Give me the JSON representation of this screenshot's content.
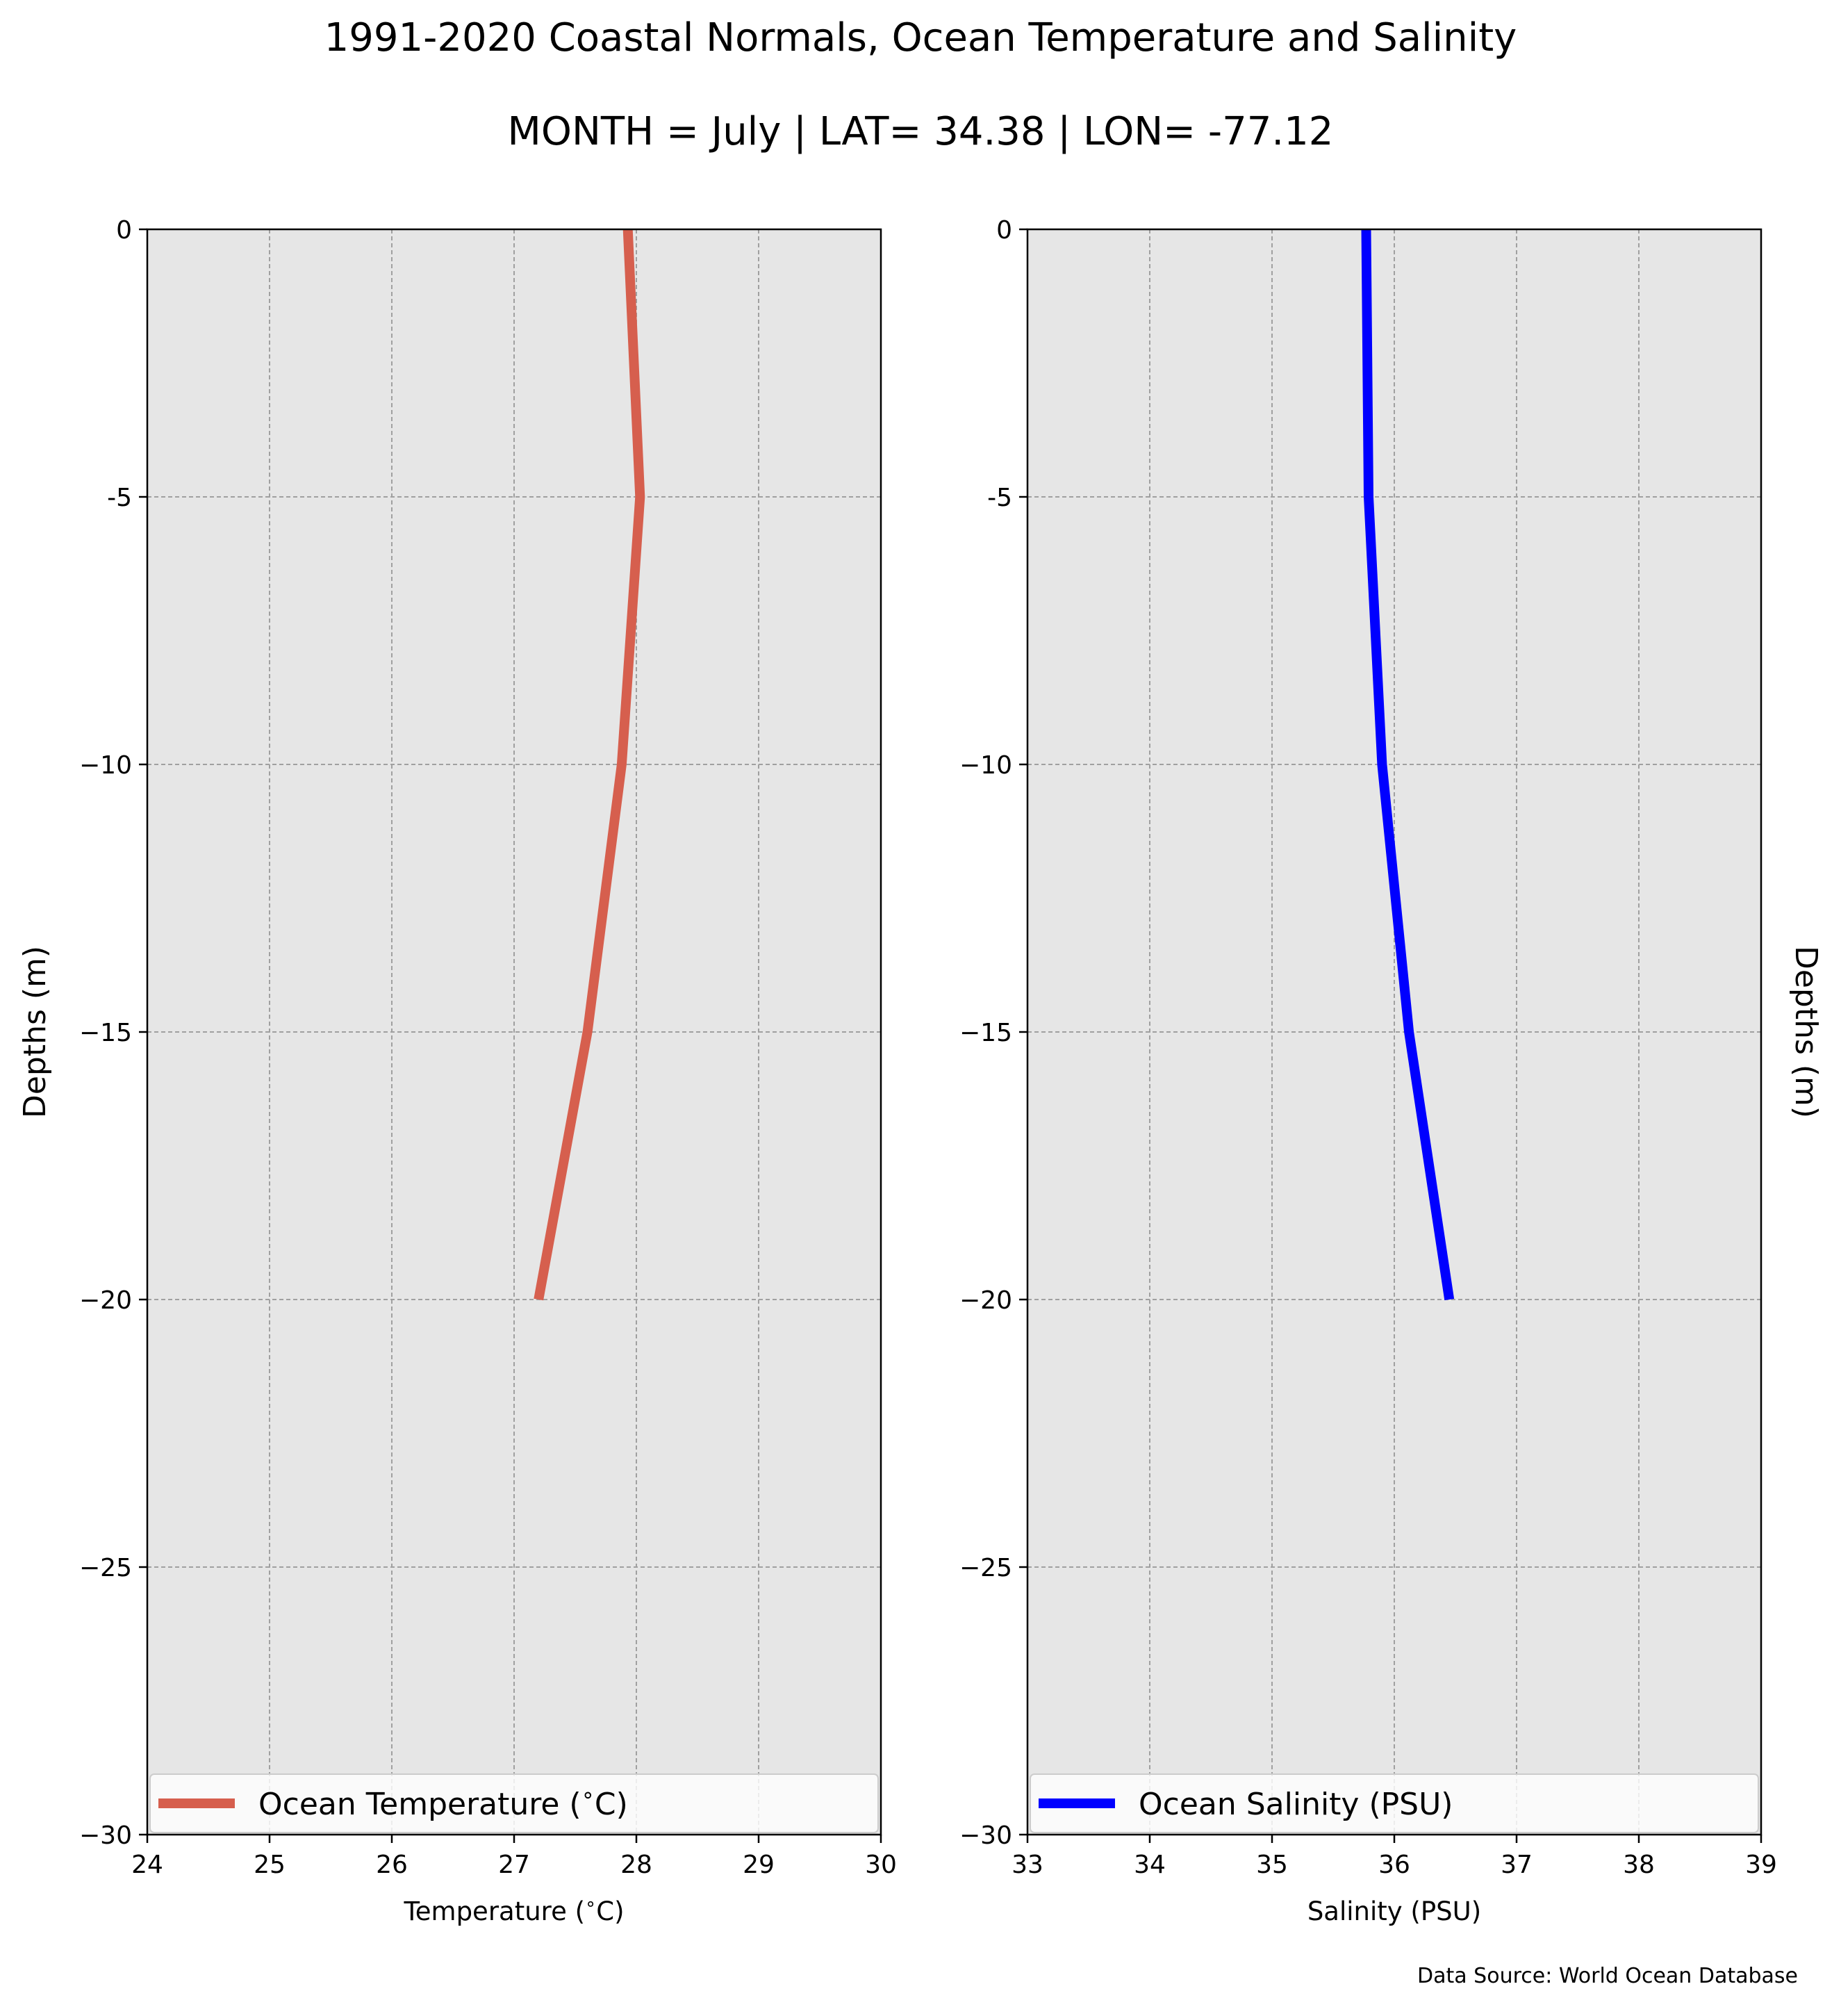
{
  "figure": {
    "title": "1991-2020 Coastal Normals, Ocean Temperature and Salinity",
    "subtitle": "MONTH = July | LAT= 34.38 | LON= -77.12",
    "source_note": "Data Source: World Ocean Database"
  },
  "chart_data": [
    {
      "type": "line",
      "title": "",
      "xlabel": "Temperature ($^\\circ$C)",
      "ylabel": "Depths (m)",
      "ylabel_side": "left",
      "xlim": [
        24,
        30
      ],
      "ylim": [
        -30,
        0
      ],
      "xticks": [
        24,
        25,
        26,
        27,
        28,
        29,
        30
      ],
      "yticks": [
        0,
        -5,
        -10,
        -15,
        -20,
        -25,
        -30
      ],
      "xtick_labels": [
        "24",
        "25",
        "26",
        "27",
        "28",
        "29",
        "30"
      ],
      "ytick_labels": [
        "0",
        "-5",
        "−10",
        "−15",
        "−20",
        "−25",
        "−30"
      ],
      "grid": true,
      "background": "#e6e6e6",
      "legend_position": "bottom",
      "series": [
        {
          "name": "Ocean Temperature ($^\\circ$C)",
          "color": "#d65f4e",
          "x": [
            27.93,
            28.03,
            27.88,
            27.6,
            27.2
          ],
          "y": [
            0,
            -5,
            -10,
            -15,
            -20
          ]
        }
      ]
    },
    {
      "type": "line",
      "title": "",
      "xlabel": "Salinity (PSU)",
      "ylabel": "Depths (m)",
      "ylabel_side": "right",
      "xlim": [
        33,
        39
      ],
      "ylim": [
        -30,
        0
      ],
      "xticks": [
        33,
        34,
        35,
        36,
        37,
        38,
        39
      ],
      "yticks": [
        0,
        -5,
        -10,
        -15,
        -20,
        -25,
        -30
      ],
      "xtick_labels": [
        "33",
        "34",
        "35",
        "36",
        "37",
        "38",
        "39"
      ],
      "ytick_labels": [
        "0",
        "-5",
        "−10",
        "−15",
        "−20",
        "−25",
        "−30"
      ],
      "grid": true,
      "background": "#e6e6e6",
      "legend_position": "bottom",
      "series": [
        {
          "name": "Ocean Salinity (PSU)",
          "color": "#0000ff",
          "x": [
            35.77,
            35.79,
            35.9,
            36.12,
            36.45
          ],
          "y": [
            0,
            -5,
            -10,
            -15,
            -20
          ]
        }
      ]
    }
  ]
}
